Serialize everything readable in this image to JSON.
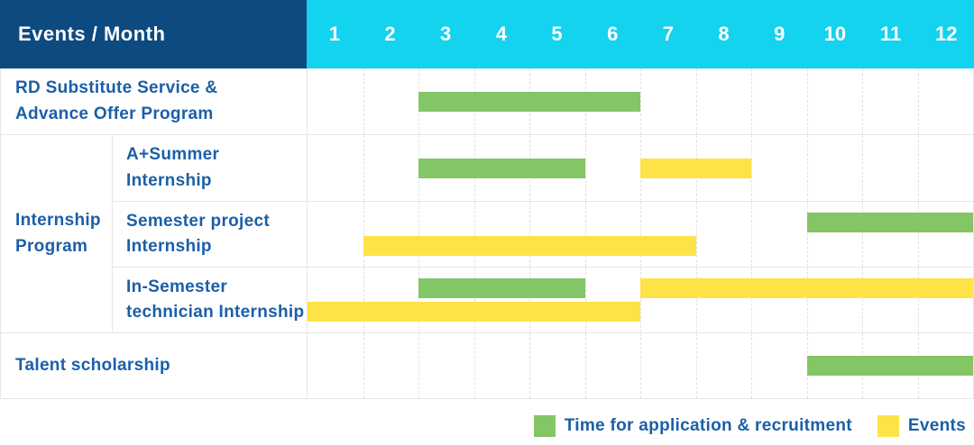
{
  "colors": {
    "navy": "#0d4a80",
    "cyan": "#14d3ee",
    "green": "#84c566",
    "yellow": "#fde347",
    "label_blue": "#1b5fa8",
    "grid": "#e6e6e6"
  },
  "chart_data": {
    "type": "bar",
    "subtype": "gantt-schedule",
    "title": "Events / Month",
    "x_axis": {
      "unit": "month",
      "ticks": [
        "1",
        "2",
        "3",
        "4",
        "5",
        "6",
        "7",
        "8",
        "9",
        "10",
        "11",
        "12"
      ],
      "range": [
        1,
        12
      ],
      "grid": "dashed-vertical"
    },
    "legend": [
      {
        "key": "application",
        "label": "Time for application & recruitment",
        "color": "#84c566"
      },
      {
        "key": "events",
        "label": "Events",
        "color": "#fde347"
      }
    ],
    "legend_position": "bottom-right",
    "rows": [
      {
        "group": null,
        "label": "RD Substitute Service &\nAdvance Offer Program",
        "bars": [
          {
            "series": "application",
            "start_month": 3,
            "end_month": 6,
            "lane": "middle"
          }
        ]
      },
      {
        "group": "Internship\nProgram",
        "label": "A+Summer\nInternship",
        "bars": [
          {
            "series": "application",
            "start_month": 3,
            "end_month": 5,
            "lane": "middle"
          },
          {
            "series": "events",
            "start_month": 7,
            "end_month": 8,
            "lane": "middle"
          }
        ]
      },
      {
        "group": "Internship\nProgram",
        "label": "Semester project\nInternship",
        "bars": [
          {
            "series": "application",
            "start_month": 10,
            "end_month": 12,
            "lane": "top"
          },
          {
            "series": "events",
            "start_month": 2,
            "end_month": 7,
            "lane": "bottom"
          }
        ]
      },
      {
        "group": "Internship\nProgram",
        "label": "In-Semester\ntechnician Internship",
        "bars": [
          {
            "series": "application",
            "start_month": 3,
            "end_month": 5,
            "lane": "top"
          },
          {
            "series": "events",
            "start_month": 7,
            "end_month": 12,
            "lane": "top"
          },
          {
            "series": "events",
            "start_month": 1,
            "end_month": 6,
            "lane": "bottom"
          }
        ]
      },
      {
        "group": null,
        "label": "Talent scholarship",
        "bars": [
          {
            "series": "application",
            "start_month": 10,
            "end_month": 12,
            "lane": "middle"
          }
        ]
      }
    ]
  }
}
